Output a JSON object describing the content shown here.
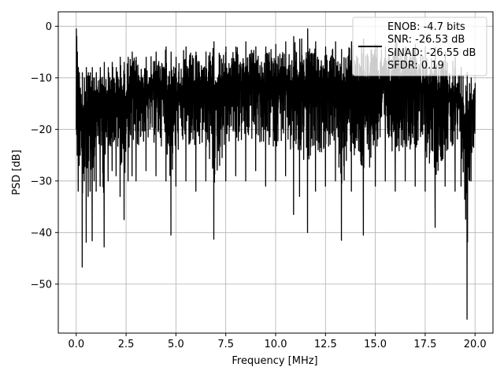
{
  "chart_data": {
    "type": "line",
    "xlabel": "Frequency [MHz]",
    "ylabel": "PSD [dB]",
    "xlim": [
      -0.9,
      20.9
    ],
    "ylim": [
      -59.5,
      2.8
    ],
    "xticks": [
      0.0,
      2.5,
      5.0,
      7.5,
      10.0,
      12.5,
      15.0,
      17.5,
      20.0
    ],
    "xtick_labels": [
      "0.0",
      "2.5",
      "5.0",
      "7.5",
      "10.0",
      "12.5",
      "15.0",
      "17.5",
      "20.0"
    ],
    "yticks": [
      0,
      -10,
      -20,
      -30,
      -40,
      -50
    ],
    "ytick_labels": [
      "0",
      "−10",
      "−20",
      "−30",
      "−40",
      "−50"
    ],
    "grid": true,
    "legend_position": "top-right",
    "legend_entries": [
      "ENOB: -4.7 bits",
      "SNR: -26.53 dB",
      "SINAD: -26.55 dB",
      "SFDR: 0.19"
    ],
    "line_color": "#000000",
    "series": [
      {
        "x": [
          0.0,
          0.02,
          0.05,
          0.1,
          0.15,
          0.2,
          0.3,
          0.4,
          0.5,
          0.6,
          0.7,
          0.8,
          0.9,
          1.0,
          1.2,
          1.4,
          1.6,
          1.8,
          2.0,
          2.2,
          2.4,
          2.6,
          2.8,
          3.0,
          3.5,
          4.0,
          4.5,
          4.75,
          5.0,
          5.5,
          6.0,
          6.5,
          6.9,
          7.5,
          8.0,
          8.5,
          9.0,
          9.5,
          10.0,
          10.5,
          10.9,
          11.2,
          11.6,
          12.0,
          12.5,
          13.0,
          13.3,
          13.8,
          14.4,
          15.0,
          15.5,
          16.0,
          16.5,
          17.0,
          17.5,
          18.0,
          18.5,
          19.0,
          19.3,
          19.6,
          19.8,
          20.0
        ],
        "y_max": [
          -0.5,
          -2.0,
          -5.0,
          -8.0,
          -9.0,
          -12.0,
          -9.0,
          -10.0,
          -8.0,
          -9.0,
          -9.0,
          -8.0,
          -10.0,
          -9.0,
          -8.0,
          -7.0,
          -8.0,
          -7.0,
          -8.0,
          -6.0,
          -7.0,
          -6.0,
          -5.0,
          -6.0,
          -6.0,
          -5.0,
          -4.0,
          -5.0,
          -6.0,
          -4.0,
          -5.0,
          -5.0,
          -3.0,
          -4.0,
          -4.0,
          -3.0,
          -4.0,
          -4.0,
          -3.5,
          -3.0,
          -2.0,
          -2.5,
          -0.5,
          -3.0,
          -4.0,
          -3.0,
          -4.5,
          -3.0,
          -2.5,
          -3.5,
          -4.0,
          -3.0,
          -4.0,
          -3.5,
          -4.0,
          -4.0,
          -5.0,
          -6.0,
          -8.0,
          -9.0,
          -10.0,
          -11.0
        ],
        "y_min": [
          -20.0,
          -21.0,
          -25.0,
          -32.0,
          -27.0,
          -25.0,
          -46.7,
          -30.0,
          -41.9,
          -33.0,
          -32.0,
          -41.6,
          -30.0,
          -32.0,
          -31.0,
          -42.8,
          -30.0,
          -28.0,
          -29.0,
          -33.0,
          -37.5,
          -30.0,
          -29.0,
          -30.0,
          -28.0,
          -29.0,
          -30.0,
          -40.5,
          -31.0,
          -30.0,
          -32.0,
          -30.0,
          -41.3,
          -30.0,
          -29.0,
          -30.0,
          -28.0,
          -31.0,
          -30.0,
          -29.0,
          -36.5,
          -33.0,
          -40.0,
          -32.0,
          -31.0,
          -30.0,
          -41.5,
          -32.0,
          -40.5,
          -31.0,
          -30.0,
          -32.0,
          -30.0,
          -31.0,
          -32.0,
          -39.0,
          -31.0,
          -32.0,
          -31.0,
          -56.8,
          -30.0,
          -28.8
        ]
      }
    ]
  }
}
